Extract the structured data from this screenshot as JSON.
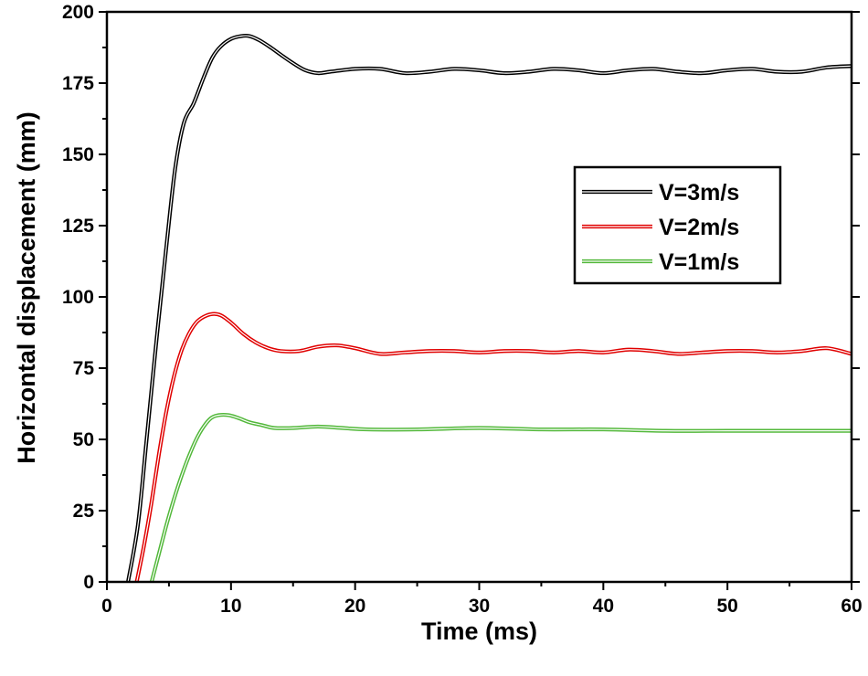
{
  "chart_data": {
    "type": "line",
    "title": "",
    "xlabel": "Time (ms)",
    "ylabel": "Horizontal displacement (mm)",
    "xlim": [
      0,
      60
    ],
    "ylim": [
      0,
      200
    ],
    "xticks": [
      0,
      10,
      20,
      30,
      40,
      50,
      60
    ],
    "yticks": [
      0,
      25,
      50,
      75,
      100,
      125,
      150,
      175,
      200
    ],
    "grid": false,
    "legend_position": "center-right",
    "series": [
      {
        "name": "V=3m/s",
        "color": "#000000",
        "x": [
          1.7,
          2.5,
          3.2,
          4.0,
          4.8,
          5.5,
          6.2,
          7.0,
          7.8,
          8.5,
          9.2,
          10.0,
          10.8,
          11.5,
          12.3,
          13.2,
          14.0,
          15.0,
          16.0,
          17.0,
          18.0,
          20.0,
          22.0,
          24.0,
          26.0,
          28.0,
          30.0,
          32.0,
          34.0,
          36.0,
          38.0,
          40.0,
          42.0,
          44.0,
          46.0,
          48.0,
          50.0,
          52.0,
          54.0,
          56.0,
          58.0,
          60.0
        ],
        "y": [
          0,
          20,
          50,
          85,
          118,
          145,
          161,
          168,
          177,
          184,
          188,
          190.5,
          191.5,
          191.5,
          190,
          187.5,
          185,
          182,
          179.5,
          178.5,
          179,
          180,
          180,
          178.5,
          179,
          180,
          179.5,
          178.5,
          179,
          180,
          179.5,
          178.5,
          179.5,
          180,
          179,
          178.5,
          179.5,
          180,
          179,
          179,
          180.5,
          181
        ]
      },
      {
        "name": "V=2m/s",
        "color": "#e00000",
        "x": [
          2.4,
          3.0,
          3.6,
          4.2,
          4.8,
          5.4,
          6.0,
          6.6,
          7.2,
          7.8,
          8.5,
          9.2,
          10.0,
          11.0,
          12.0,
          13.0,
          14.0,
          15.5,
          17.0,
          18.5,
          20.0,
          22.0,
          24.0,
          26.0,
          28.0,
          30.0,
          32.0,
          34.0,
          36.0,
          38.0,
          40.0,
          42.0,
          44.0,
          46.0,
          48.0,
          50.0,
          52.0,
          54.0,
          56.0,
          58.0,
          60.0
        ],
        "y": [
          0,
          13,
          28,
          45,
          60,
          72,
          81,
          87,
          91,
          93,
          94,
          93.5,
          91,
          87,
          84,
          82,
          81,
          81,
          82.5,
          83,
          82,
          80,
          80.5,
          81,
          81,
          80.5,
          81,
          81,
          80.5,
          81,
          80.5,
          81.5,
          81,
          80,
          80.5,
          81,
          81,
          80.5,
          81,
          82,
          80
        ]
      },
      {
        "name": "V=1m/s",
        "color": "#52b83a",
        "x": [
          3.6,
          4.2,
          4.8,
          5.4,
          6.0,
          6.6,
          7.2,
          7.8,
          8.4,
          9.0,
          9.8,
          10.6,
          11.5,
          12.5,
          13.5,
          15.0,
          17.0,
          19.0,
          21.0,
          25.0,
          30.0,
          35.0,
          40.0,
          45.0,
          50.0,
          55.0,
          60.0
        ],
        "y": [
          0,
          10,
          20,
          29,
          37,
          44,
          50,
          54.5,
          57.5,
          58.5,
          58.5,
          57.5,
          56,
          55,
          54,
          54,
          54.5,
          54,
          53.5,
          53.5,
          54,
          53.5,
          53.5,
          53,
          53,
          53,
          53
        ]
      }
    ]
  }
}
